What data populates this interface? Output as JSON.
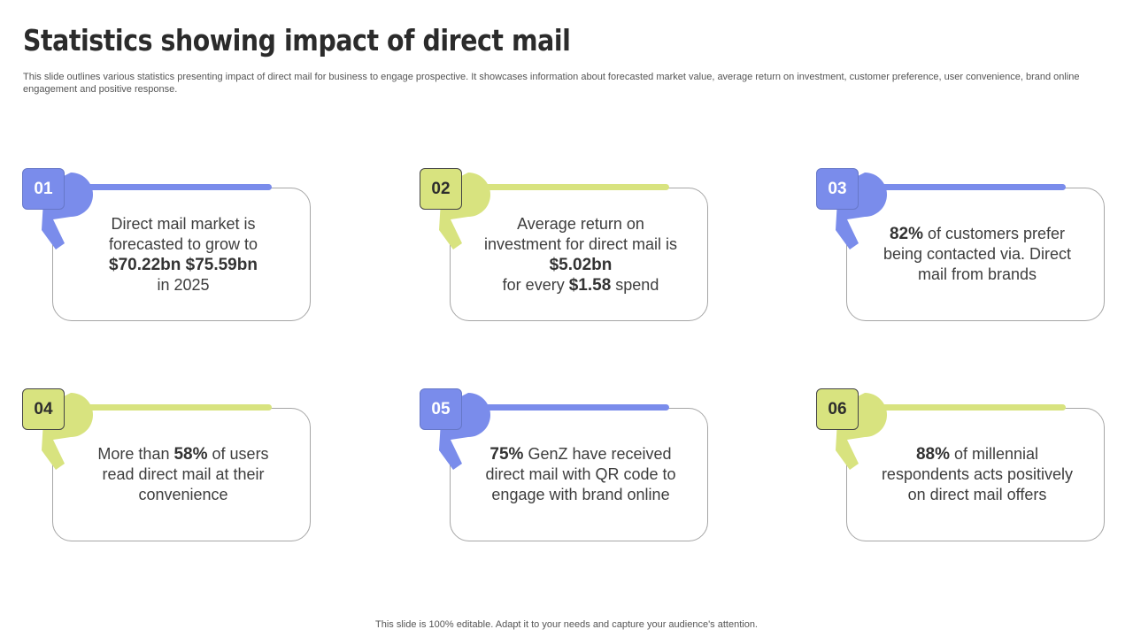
{
  "slide": {
    "title": "Statistics showing impact of direct mail",
    "subtitle": "This slide outlines various statistics presenting impact of direct mail for business to engage prospective. It showcases information about forecasted market value, average return on investment, customer preference, user convenience, brand online engagement and positive response.",
    "footer": "This slide is 100% editable. Adapt it to your needs and capture your audience's attention."
  },
  "colors": {
    "blue": "#7a8ceb",
    "green": "#d8e37f"
  },
  "cards": [
    {
      "number": "01",
      "theme": "blue",
      "line1": "Direct mail market is forecasted to grow to",
      "highlight": "$70.22bn $75.59bn",
      "line2": "in 2025"
    },
    {
      "number": "02",
      "theme": "green",
      "line1": "Average return on investment for direct mail is",
      "highlight": "$5.02bn",
      "line2_pre": "for every",
      "highlight2": "$1.58",
      "line2_post": "spend"
    },
    {
      "number": "03",
      "theme": "blue",
      "highlight": "82%",
      "text": "of customers prefer being contacted via. Direct mail from brands"
    },
    {
      "number": "04",
      "theme": "green",
      "text_pre": "More than",
      "highlight": "58%",
      "text": "of users read direct mail at their convenience"
    },
    {
      "number": "05",
      "theme": "blue",
      "highlight": "75%",
      "text": "GenZ have received direct mail with QR code to engage with brand online"
    },
    {
      "number": "06",
      "theme": "green",
      "highlight": "88%",
      "text": "of millennial respondents acts positively on direct mail offers"
    }
  ]
}
